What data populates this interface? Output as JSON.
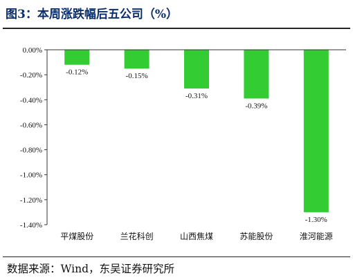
{
  "figure": {
    "title": "图3：本周涨跌幅后五公司（%）",
    "source": "数据来源：Wind，东吴证券研究所"
  },
  "chart_data": {
    "type": "bar",
    "categories": [
      "平煤股份",
      "兰花科创",
      "山西焦煤",
      "苏能股份",
      "淮河能源"
    ],
    "values": [
      -0.12,
      -0.15,
      -0.31,
      -0.39,
      -1.3
    ],
    "data_labels": [
      "-0.12%",
      "-0.15%",
      "-0.31%",
      "-0.39%",
      "-1.30%"
    ],
    "ylim": [
      -1.4,
      0.0
    ],
    "yticks": [
      0.0,
      -0.2,
      -0.4,
      -0.6,
      -0.8,
      -1.0,
      -1.2,
      -1.4
    ],
    "ytick_labels": [
      "0.00%",
      "-0.20%",
      "-0.40%",
      "-0.60%",
      "-0.80%",
      "-1.00%",
      "-1.20%",
      "-1.40%"
    ],
    "bar_color": "#33cc33",
    "grid": false,
    "legend": false
  }
}
